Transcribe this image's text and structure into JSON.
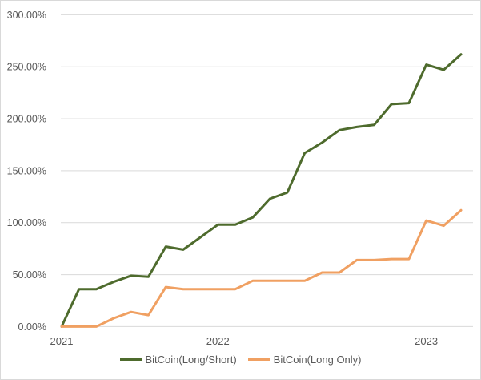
{
  "chart": {
    "background": "#ffffff",
    "border_color": "#d9d9d9",
    "gridline_color": "#d9d9d9",
    "axis_label_color": "#595959",
    "legend": [
      {
        "label": "BitCoin(Long/Short)",
        "color": "#4e6b2d"
      },
      {
        "label": "BitCoin(Long Only)",
        "color": "#f0a062"
      }
    ]
  },
  "chart_data": {
    "type": "line",
    "title": "",
    "xlabel": "",
    "ylabel": "",
    "grid": true,
    "legend_position": "bottom",
    "ylim": [
      0,
      300
    ],
    "y_tick_step": 50,
    "y_tick_labels": [
      "300.00%",
      "250.00%",
      "200.00%",
      "150.00%",
      "100.00%",
      "50.00%",
      "0.00%"
    ],
    "x": [
      "2021-04",
      "2021-05",
      "2021-06",
      "2021-07",
      "2021-08",
      "2021-09",
      "2021-10",
      "2021-11",
      "2021-12",
      "2022-01",
      "2022-02",
      "2022-03",
      "2022-04",
      "2022-05",
      "2022-06",
      "2022-07",
      "2022-08",
      "2022-09",
      "2022-10",
      "2022-11",
      "2022-12",
      "2023-01",
      "2023-02",
      "2023-03"
    ],
    "x_tick_labels": [
      {
        "label": "2021",
        "index": 0
      },
      {
        "label": "2022",
        "index": 9
      },
      {
        "label": "2023",
        "index": 21
      }
    ],
    "unit": "percent",
    "series": [
      {
        "name": "BitCoin(Long/Short)",
        "color": "#4e6b2d",
        "values": [
          0,
          36,
          36,
          43,
          49,
          48,
          77,
          74,
          86,
          98,
          98,
          105,
          123,
          129,
          167,
          177,
          189,
          192,
          194,
          214,
          215,
          252,
          247,
          262
        ]
      },
      {
        "name": "BitCoin(Long Only)",
        "color": "#f0a062",
        "values": [
          0,
          0,
          0,
          8,
          14,
          11,
          38,
          36,
          36,
          36,
          36,
          44,
          44,
          44,
          44,
          52,
          52,
          64,
          64,
          65,
          65,
          102,
          97,
          112
        ]
      }
    ]
  }
}
